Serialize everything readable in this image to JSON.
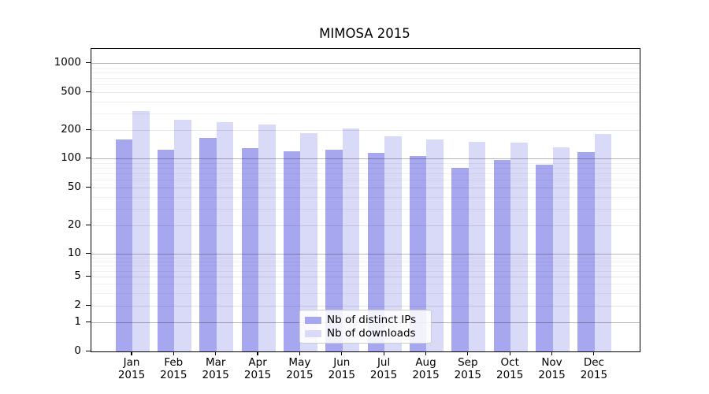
{
  "title": "MIMOSA 2015",
  "legend": {
    "items": [
      {
        "label": "Nb of distinct IPs",
        "color": "#a7a7f0"
      },
      {
        "label": "Nb of downloads",
        "color": "#d9d9f8"
      }
    ]
  },
  "colors": {
    "distinct_ips_bar": "#a7a7f0",
    "downloads_bar": "#d9d9f8",
    "axis": "#000000"
  },
  "chart_data": {
    "type": "bar",
    "title": "MIMOSA 2015",
    "categories": [
      "Jan 2015",
      "Feb 2015",
      "Mar 2015",
      "Apr 2015",
      "May 2015",
      "Jun 2015",
      "Jul 2015",
      "Aug 2015",
      "Sep 2015",
      "Oct 2015",
      "Nov 2015",
      "Dec 2015"
    ],
    "series": [
      {
        "name": "Nb of distinct IPs",
        "color": "#a7a7f0",
        "values": [
          160,
          125,
          165,
          130,
          120,
          125,
          116,
          107,
          80,
          96,
          86,
          118
        ]
      },
      {
        "name": "Nb of downloads",
        "color": "#d9d9f8",
        "values": [
          318,
          255,
          241,
          228,
          185,
          206,
          172,
          159,
          151,
          147,
          131,
          181
        ]
      }
    ],
    "xlabel": "",
    "ylabel": "",
    "yscale": "symlog",
    "yticks": [
      0,
      1,
      2,
      5,
      10,
      20,
      50,
      100,
      200,
      500,
      1000
    ],
    "minor_yticks": [
      3,
      4,
      6,
      7,
      8,
      9,
      30,
      40,
      60,
      70,
      80,
      90,
      300,
      400,
      600,
      700,
      800,
      900
    ],
    "ylim": [
      0,
      1400
    ],
    "grid": true,
    "legend_position": "lower center"
  }
}
